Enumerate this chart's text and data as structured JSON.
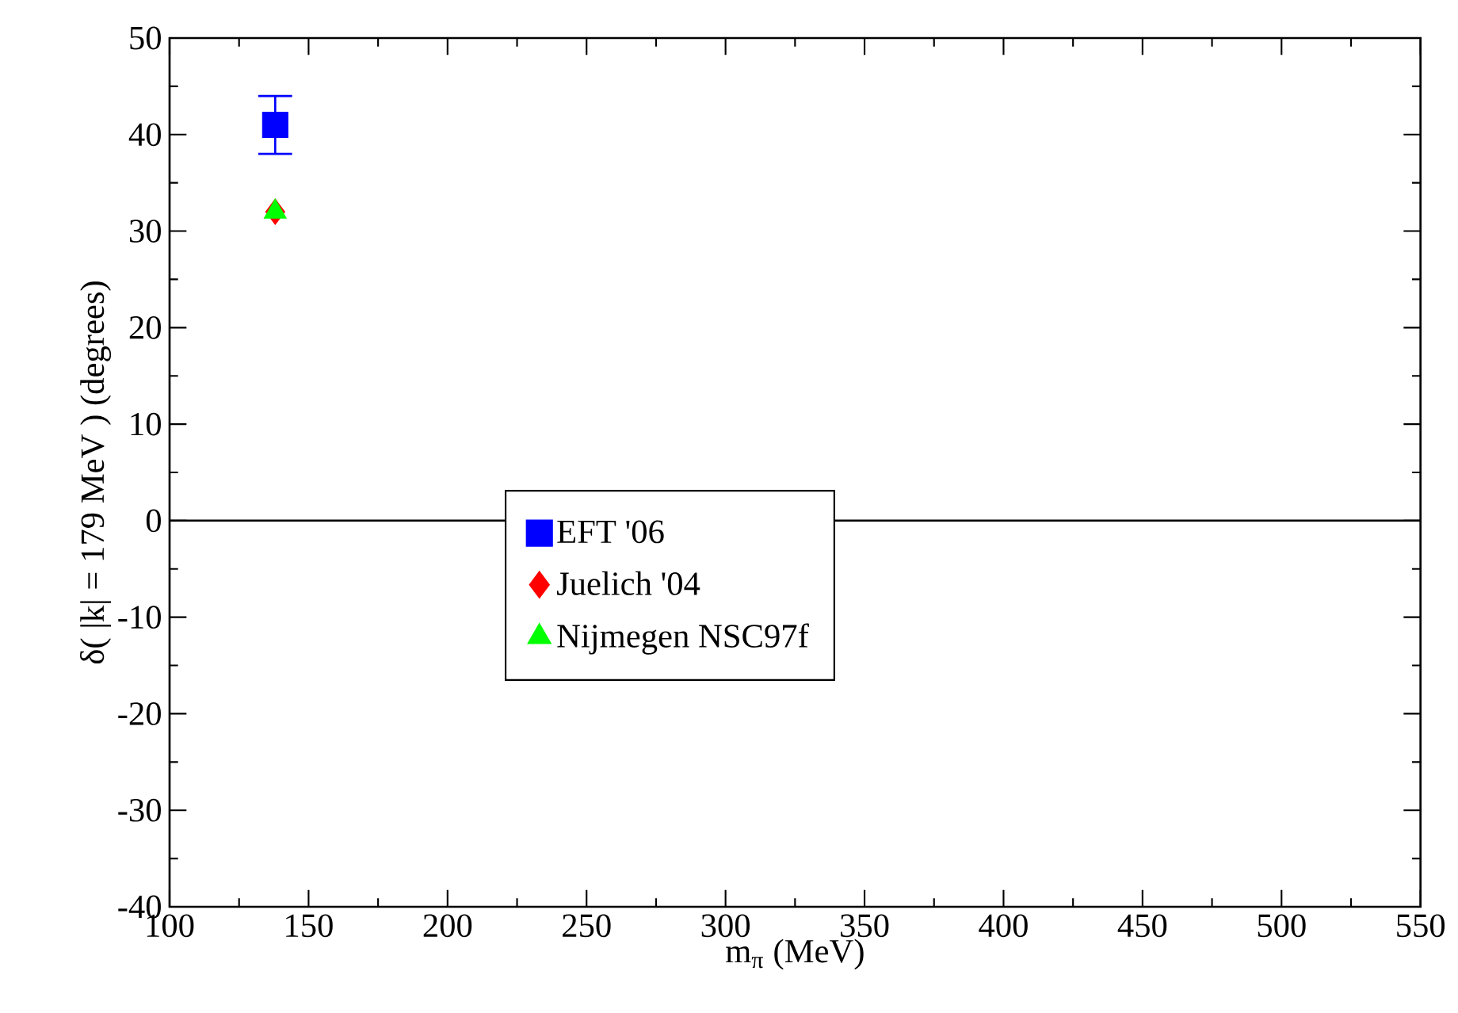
{
  "chart_data": {
    "type": "scatter",
    "xlabel": "m$_{π}$  (MeV)",
    "ylabel": "δ( |k| = 179 MeV )      (degrees)",
    "xlim": [
      100,
      550
    ],
    "xticks": [
      100,
      150,
      200,
      250,
      300,
      350,
      400,
      450,
      500,
      550
    ],
    "ylim": [
      -40,
      50
    ],
    "yticks": [
      -40,
      -30,
      -20,
      -10,
      0,
      10,
      20,
      30,
      40,
      50
    ],
    "grid": false,
    "legend": "center",
    "x": [
      138
    ],
    "ref_lines": [
      {
        "axis": "y",
        "value": 0,
        "color": "#000000",
        "line_style": "solid"
      }
    ],
    "series": [
      {
        "name": "EFT '06",
        "color": "#0000ff",
        "marker": "square",
        "values": [
          41
        ],
        "errors": [
          [
            38,
            44
          ]
        ]
      },
      {
        "name": "Juelich '04",
        "color": "#ff0000",
        "marker": "diamond",
        "values": [
          32
        ]
      },
      {
        "name": "Nijmegen  NSC97f",
        "color": "#00ff00",
        "marker": "triangle",
        "values": [
          32
        ]
      }
    ]
  }
}
